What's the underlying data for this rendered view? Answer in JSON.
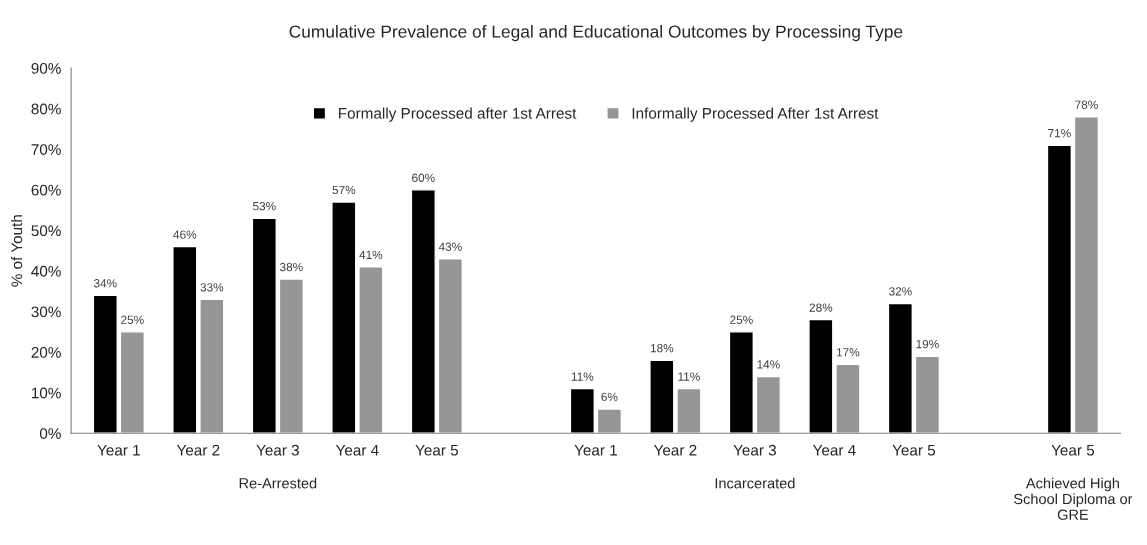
{
  "chart_data": {
    "type": "bar",
    "title": "Cumulative Prevalence of Legal and Educational Outcomes by Processing Type",
    "ylabel": "% of Youth",
    "categories": [
      "Year 1",
      "Year 2",
      "Year 3",
      "Year 4",
      "Year 5",
      null,
      "Year 1",
      "Year 2",
      "Year 3",
      "Year 4",
      "Year 5",
      null,
      "Year 5"
    ],
    "series": [
      {
        "name": "Formally Processed after 1st Arrest",
        "color": "#000000",
        "values": [
          34,
          46,
          53,
          57,
          60,
          null,
          11,
          18,
          25,
          28,
          32,
          null,
          71
        ],
        "value_labels": [
          "34%",
          "46%",
          "53%",
          "57%",
          "60%",
          null,
          "11%",
          "18%",
          "25%",
          "28%",
          "32%",
          null,
          "71%"
        ]
      },
      {
        "name": "Informally Processed After 1st Arrest",
        "color": "#969696",
        "values": [
          25,
          33,
          38,
          41,
          43,
          null,
          6,
          11,
          14,
          17,
          19,
          null,
          78
        ],
        "value_labels": [
          "25%",
          "33%",
          "38%",
          "41%",
          "43%",
          null,
          "6%",
          "11%",
          "14%",
          "17%",
          "19%",
          null,
          "78%"
        ]
      }
    ],
    "ylim": [
      0,
      90
    ],
    "yticks": [
      {
        "value": 0,
        "label": "0%"
      },
      {
        "value": 10,
        "label": "10%"
      },
      {
        "value": 20,
        "label": "20%"
      },
      {
        "value": 30,
        "label": "30%"
      },
      {
        "value": 40,
        "label": "40%"
      },
      {
        "value": 50,
        "label": "50%"
      },
      {
        "value": 60,
        "label": "60%"
      },
      {
        "value": 70,
        "label": "70%"
      },
      {
        "value": 80,
        "label": "80%"
      },
      {
        "value": 90,
        "label": "90%"
      }
    ],
    "annotations": [
      "Re-Arrested",
      "Incarcerated",
      "Achieved High\nSchool Diploma or\nGRE"
    ],
    "legend": "top",
    "grid": false
  }
}
